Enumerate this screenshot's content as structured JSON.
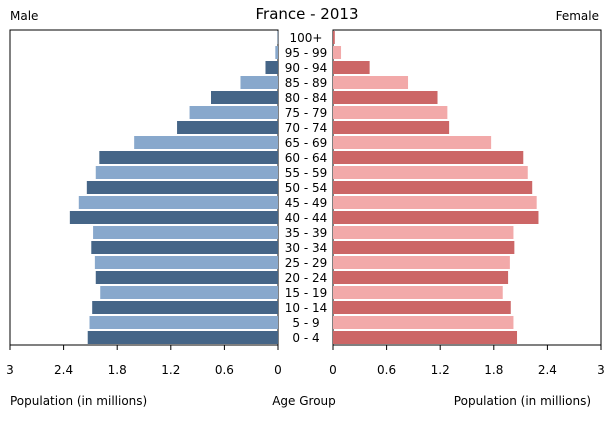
{
  "chart_data": {
    "type": "bar",
    "title": "France - 2013",
    "left_label": "Male",
    "right_label": "Female",
    "xlabel_left": "Population (in millions)",
    "xlabel_center": "Age Group",
    "xlabel_right": "Population (in millions)",
    "xlim": [
      0,
      3
    ],
    "ticks": [
      0,
      0.6,
      1.2,
      1.8,
      2.4,
      3
    ],
    "categories": [
      "0 - 4",
      "5 - 9",
      "10 - 14",
      "15 - 19",
      "20 - 24",
      "25 - 29",
      "30 - 34",
      "35 - 39",
      "40 - 44",
      "45 - 49",
      "50 - 54",
      "55 - 59",
      "60 - 64",
      "65 - 69",
      "70 - 74",
      "75 - 79",
      "80 - 84",
      "85 - 89",
      "90 - 94",
      "95 - 99",
      "100+"
    ],
    "series": [
      {
        "name": "Male",
        "values": [
          2.13,
          2.11,
          2.08,
          1.99,
          2.04,
          2.05,
          2.09,
          2.07,
          2.33,
          2.23,
          2.14,
          2.04,
          2.0,
          1.61,
          1.13,
          0.99,
          0.75,
          0.42,
          0.14,
          0.03,
          0.005
        ]
      },
      {
        "name": "Female",
        "values": [
          2.06,
          2.02,
          1.99,
          1.9,
          1.96,
          1.98,
          2.03,
          2.02,
          2.3,
          2.28,
          2.23,
          2.18,
          2.13,
          1.77,
          1.3,
          1.28,
          1.17,
          0.84,
          0.41,
          0.09,
          0.02
        ]
      }
    ],
    "colors": {
      "male_dark": "#456587",
      "male_light": "#88a8cc",
      "female_dark": "#cc6666",
      "female_light": "#f2a9a9"
    }
  }
}
